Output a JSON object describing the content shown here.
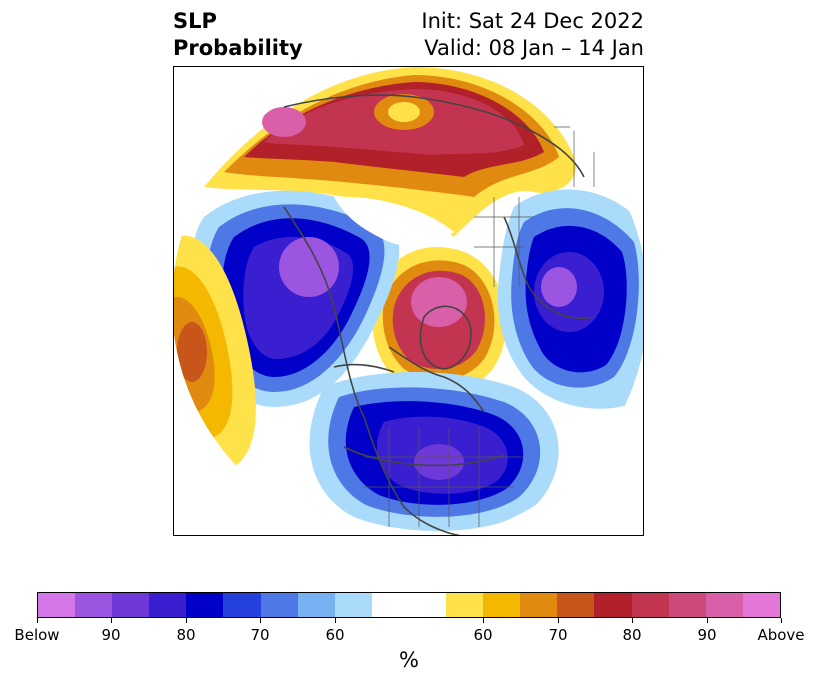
{
  "title": {
    "left_line1": "SLP",
    "left_line2": "Probability",
    "right_line1": "Init: Sat 24 Dec 2022",
    "right_line2": "Valid: 08 Jan – 14 Jan"
  },
  "colorbar": {
    "colors": [
      "#d475e8",
      "#9b55e0",
      "#6f38d8",
      "#3a1fd0",
      "#0000c8",
      "#2441dc",
      "#4d78e6",
      "#76b2f2",
      "#aadbfa",
      "#ffffff",
      "#ffffff",
      "#ffe24a",
      "#f5b800",
      "#e08a10",
      "#c8561a",
      "#b2212a",
      "#c23450",
      "#cc4a7a",
      "#d95fa8",
      "#e476d8"
    ],
    "labels": [
      "Below",
      "90",
      "80",
      "70",
      "60",
      "60",
      "70",
      "80",
      "90",
      "Above"
    ],
    "units": "%"
  }
}
